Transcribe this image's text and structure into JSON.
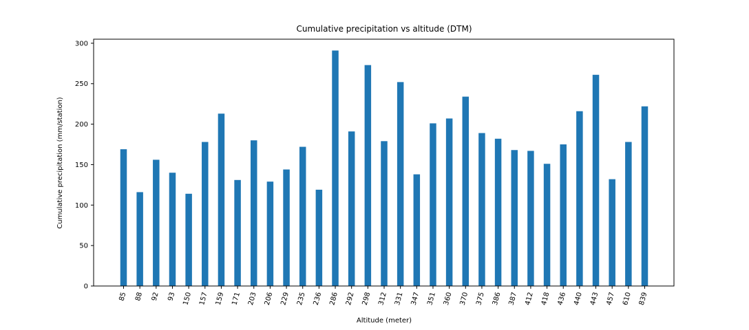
{
  "chart_data": {
    "type": "bar",
    "title": "Cumulative precipitation vs altitude (DTM)",
    "xlabel": "Altitude (meter)",
    "ylabel": "Cumulative precipitation (mm/station)",
    "ylim": [
      0,
      305
    ],
    "yticks": [
      0,
      50,
      100,
      150,
      200,
      250,
      300
    ],
    "grid": false,
    "bar_color": "#1f77b4",
    "categories": [
      "85",
      "88",
      "92",
      "93",
      "150",
      "157",
      "159",
      "171",
      "203",
      "206",
      "229",
      "235",
      "236",
      "286",
      "292",
      "298",
      "312",
      "331",
      "347",
      "351",
      "360",
      "370",
      "375",
      "386",
      "387",
      "412",
      "418",
      "436",
      "440",
      "443",
      "457",
      "610",
      "839"
    ],
    "values": [
      169,
      116,
      156,
      140,
      114,
      178,
      213,
      131,
      180,
      129,
      144,
      172,
      119,
      291,
      191,
      273,
      179,
      252,
      138,
      201,
      207,
      234,
      189,
      182,
      168,
      167,
      151,
      175,
      216,
      261,
      132,
      178,
      222
    ]
  }
}
